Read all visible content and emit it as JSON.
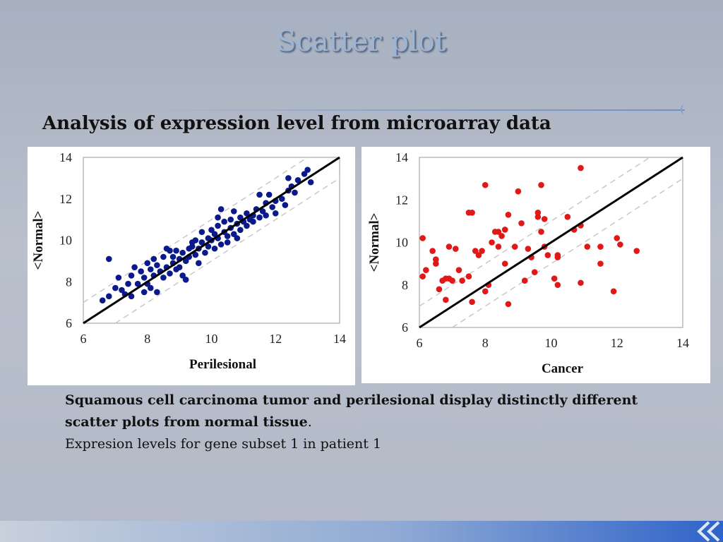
{
  "slide": {
    "title": "Scatter plot",
    "subtitle": "Analysis of expression level from microarray data",
    "caption_bold": "Squamous cell carcinoma tumor and perilesional display distinctly different scatter plots from normal tissue",
    "caption_bold_end": ".",
    "caption_line2": "Expresion levels for gene subset 1 in patient 1"
  },
  "chart_data": [
    {
      "type": "scatter",
      "xlabel": "Perilesional",
      "ylabel": "<Normal>",
      "xlim": [
        6,
        14
      ],
      "ylim": [
        6,
        14
      ],
      "xticks": [
        "6",
        "8",
        "10",
        "12",
        "14"
      ],
      "yticks": [
        "6",
        "8",
        "10",
        "12",
        "14"
      ],
      "grid": false,
      "point_color": "#0a1a8c",
      "reference_lines": {
        "identity": true,
        "dashed_offset": 1
      },
      "points": [
        [
          6.6,
          7.1
        ],
        [
          6.8,
          7.3
        ],
        [
          6.8,
          9.1
        ],
        [
          7.0,
          7.7
        ],
        [
          7.1,
          8.2
        ],
        [
          7.2,
          7.6
        ],
        [
          7.3,
          7.4
        ],
        [
          7.5,
          7.3
        ],
        [
          7.5,
          8.3
        ],
        [
          7.6,
          8.7
        ],
        [
          7.7,
          7.9
        ],
        [
          7.8,
          8.5
        ],
        [
          7.9,
          7.5
        ],
        [
          7.9,
          8.2
        ],
        [
          8.0,
          7.9
        ],
        [
          8.0,
          8.9
        ],
        [
          8.1,
          8.6
        ],
        [
          8.2,
          8.3
        ],
        [
          8.2,
          9.1
        ],
        [
          8.3,
          7.5
        ],
        [
          8.3,
          8.8
        ],
        [
          8.4,
          8.5
        ],
        [
          8.5,
          8.2
        ],
        [
          8.5,
          9.2
        ],
        [
          8.6,
          8.7
        ],
        [
          8.7,
          8.4
        ],
        [
          8.7,
          9.5
        ],
        [
          8.8,
          8.9
        ],
        [
          8.8,
          9.2
        ],
        [
          8.9,
          8.6
        ],
        [
          8.9,
          9.5
        ],
        [
          9.0,
          9.1
        ],
        [
          9.0,
          8.7
        ],
        [
          9.1,
          9.4
        ],
        [
          9.1,
          8.3
        ],
        [
          9.2,
          9.0
        ],
        [
          9.3,
          9.6
        ],
        [
          9.3,
          9.2
        ],
        [
          9.4,
          9.7
        ],
        [
          9.5,
          9.3
        ],
        [
          9.5,
          10.0
        ],
        [
          9.6,
          8.9
        ],
        [
          9.6,
          9.6
        ],
        [
          9.7,
          9.9
        ],
        [
          9.7,
          10.4
        ],
        [
          9.8,
          9.4
        ],
        [
          9.9,
          10.1
        ],
        [
          9.9,
          9.7
        ],
        [
          10.0,
          10.5
        ],
        [
          10.0,
          10.0
        ],
        [
          10.1,
          9.6
        ],
        [
          10.1,
          10.3
        ],
        [
          10.2,
          10.7
        ],
        [
          10.2,
          10.1
        ],
        [
          10.3,
          9.8
        ],
        [
          10.3,
          11.5
        ],
        [
          10.4,
          10.4
        ],
        [
          10.4,
          10.9
        ],
        [
          10.5,
          10.2
        ],
        [
          10.5,
          9.9
        ],
        [
          10.6,
          10.6
        ],
        [
          10.6,
          11.0
        ],
        [
          10.7,
          10.3
        ],
        [
          10.7,
          11.4
        ],
        [
          10.8,
          10.8
        ],
        [
          10.9,
          10.5
        ],
        [
          10.9,
          11.1
        ],
        [
          11.0,
          10.9
        ],
        [
          11.1,
          10.7
        ],
        [
          11.1,
          11.3
        ],
        [
          11.2,
          11.0
        ],
        [
          11.3,
          11.2
        ],
        [
          11.3,
          10.9
        ],
        [
          11.4,
          11.5
        ],
        [
          11.5,
          11.1
        ],
        [
          11.6,
          11.4
        ],
        [
          11.7,
          11.8
        ],
        [
          11.7,
          11.2
        ],
        [
          11.8,
          12.2
        ],
        [
          11.9,
          11.6
        ],
        [
          12.0,
          11.9
        ],
        [
          12.0,
          11.3
        ],
        [
          12.2,
          12.0
        ],
        [
          12.3,
          11.7
        ],
        [
          12.4,
          12.4
        ],
        [
          12.5,
          12.6
        ],
        [
          12.6,
          12.3
        ],
        [
          12.7,
          12.9
        ],
        [
          12.9,
          13.2
        ],
        [
          13.0,
          13.4
        ],
        [
          13.1,
          12.8
        ],
        [
          12.4,
          13.0
        ],
        [
          11.5,
          12.2
        ],
        [
          9.2,
          8.1
        ],
        [
          8.1,
          7.7
        ],
        [
          10.8,
          10.1
        ],
        [
          9.4,
          9.9
        ],
        [
          8.6,
          9.6
        ],
        [
          7.4,
          7.9
        ],
        [
          10.2,
          11.1
        ]
      ]
    },
    {
      "type": "scatter",
      "xlabel": "Cancer",
      "ylabel": "<Normal>",
      "xlim": [
        6,
        14
      ],
      "ylim": [
        6,
        14
      ],
      "xticks": [
        "6",
        "8",
        "10",
        "12",
        "14"
      ],
      "yticks": [
        "6",
        "8",
        "10",
        "12",
        "14"
      ],
      "grid": false,
      "point_color": "#e01818",
      "reference_lines": {
        "identity": true,
        "dashed_offset": 1
      },
      "points": [
        [
          6.1,
          8.4
        ],
        [
          6.1,
          10.2
        ],
        [
          6.2,
          8.7
        ],
        [
          6.4,
          9.6
        ],
        [
          6.5,
          9.0
        ],
        [
          6.5,
          9.2
        ],
        [
          6.6,
          7.8
        ],
        [
          6.7,
          8.2
        ],
        [
          6.8,
          7.3
        ],
        [
          6.8,
          8.3
        ],
        [
          6.9,
          9.8
        ],
        [
          7.0,
          8.2
        ],
        [
          7.1,
          9.7
        ],
        [
          7.2,
          8.7
        ],
        [
          7.3,
          8.2
        ],
        [
          7.5,
          11.4
        ],
        [
          7.6,
          11.4
        ],
        [
          7.5,
          8.4
        ],
        [
          7.6,
          7.2
        ],
        [
          7.7,
          9.6
        ],
        [
          7.8,
          9.4
        ],
        [
          7.9,
          9.6
        ],
        [
          8.0,
          7.7
        ],
        [
          8.1,
          8.0
        ],
        [
          8.0,
          12.7
        ],
        [
          8.3,
          10.5
        ],
        [
          8.4,
          9.8
        ],
        [
          8.5,
          10.3
        ],
        [
          8.6,
          10.6
        ],
        [
          8.6,
          9.0
        ],
        [
          8.7,
          7.1
        ],
        [
          8.7,
          11.3
        ],
        [
          8.9,
          9.8
        ],
        [
          9.0,
          12.4
        ],
        [
          9.1,
          10.9
        ],
        [
          9.2,
          8.2
        ],
        [
          9.3,
          9.7
        ],
        [
          9.4,
          9.3
        ],
        [
          9.5,
          8.6
        ],
        [
          9.6,
          11.2
        ],
        [
          9.6,
          11.4
        ],
        [
          9.7,
          10.5
        ],
        [
          9.7,
          12.7
        ],
        [
          9.8,
          11.1
        ],
        [
          9.9,
          9.4
        ],
        [
          10.1,
          8.3
        ],
        [
          10.2,
          9.3
        ],
        [
          10.2,
          8.0
        ],
        [
          10.5,
          11.2
        ],
        [
          10.7,
          10.6
        ],
        [
          10.9,
          10.8
        ],
        [
          10.9,
          8.1
        ],
        [
          10.9,
          13.5
        ],
        [
          11.1,
          9.8
        ],
        [
          11.5,
          9.0
        ],
        [
          11.5,
          9.8
        ],
        [
          11.9,
          7.7
        ],
        [
          12.0,
          10.2
        ],
        [
          12.1,
          9.9
        ],
        [
          12.6,
          9.6
        ],
        [
          8.2,
          10.0
        ],
        [
          6.9,
          8.3
        ],
        [
          9.8,
          9.8
        ],
        [
          8.4,
          10.5
        ],
        [
          10.2,
          9.4
        ]
      ]
    }
  ]
}
